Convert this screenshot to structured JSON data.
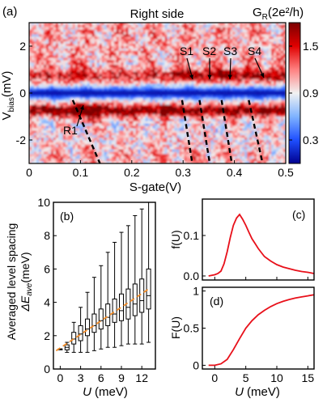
{
  "figure": {
    "panel_labels": [
      "(a)",
      "(b)",
      "(c)",
      "(d)"
    ]
  },
  "chart_data": [
    {
      "panel": "(a)",
      "type": "heatmap",
      "title": "Right side",
      "xlabel": "S-gate(V)",
      "ylabel": "V",
      "ylabel_sub": "bias",
      "ylabel_unit": "(mV)",
      "xlim": [
        0,
        0.5
      ],
      "ylim": [
        -3,
        3
      ],
      "xticks": [
        "0",
        "0.1",
        "0.2",
        "0.3",
        "0.4",
        "0.5"
      ],
      "yticks": [
        "2",
        "0",
        "-2"
      ],
      "colorbar": {
        "label": "G",
        "label_sub": "R",
        "label_unit": "(2e²/h)",
        "ticks": [
          "1.5",
          "0.9",
          "0.3"
        ],
        "range": [
          0,
          1.8
        ],
        "colors": [
          "#00008f",
          "#1f4fff",
          "#7fb3ff",
          "#f2f2f2",
          "#ff8080",
          "#e00000",
          "#7a0000"
        ]
      },
      "annotations": [
        "R1",
        "S1",
        "S2",
        "S3",
        "S4"
      ],
      "dashed_lines": [
        {
          "x": [
            0.085,
            0.138
          ],
          "y": [
            -0.3,
            -3.0
          ]
        },
        {
          "x": [
            0.298,
            0.318
          ],
          "y": [
            -0.3,
            -3.0
          ]
        },
        {
          "x": [
            0.332,
            0.352
          ],
          "y": [
            -0.3,
            -3.0
          ]
        },
        {
          "x": [
            0.375,
            0.395
          ],
          "y": [
            -0.3,
            -3.0
          ]
        },
        {
          "x": [
            0.428,
            0.455
          ],
          "y": [
            -0.3,
            -3.0
          ]
        }
      ]
    },
    {
      "panel": "(b)",
      "type": "box",
      "ylabel_line1": "Averaged level spacing",
      "ylabel_line2": "ΔE",
      "ylabel_line2_sub": "ave",
      "ylabel_line2_unit": "(meV)",
      "xlabel_var": "U",
      "xlabel_unit": "(meV)",
      "xlim": [
        -1,
        14
      ],
      "ylim": [
        0,
        10
      ],
      "xticks": [
        "0",
        "3",
        "6",
        "9",
        "12"
      ],
      "yticks": [
        "0",
        "2",
        "4",
        "6",
        "8",
        "10"
      ],
      "x": [
        0,
        1,
        2,
        3,
        4,
        5,
        6,
        7,
        8,
        9,
        10,
        11,
        12,
        13
      ],
      "q1": [
        1.2,
        1.15,
        1.5,
        1.7,
        2.0,
        2.2,
        2.4,
        2.6,
        2.8,
        2.9,
        3.0,
        3.2,
        3.4,
        3.6
      ],
      "median": [
        1.2,
        1.3,
        1.8,
        2.1,
        2.4,
        2.6,
        2.9,
        3.1,
        3.3,
        3.5,
        3.7,
        3.9,
        4.1,
        4.4
      ],
      "q3": [
        1.2,
        1.45,
        2.2,
        2.6,
        3.0,
        3.3,
        3.6,
        3.9,
        4.2,
        4.5,
        4.8,
        5.1,
        5.4,
        6.0
      ],
      "wlow": [
        1.2,
        1.0,
        1.0,
        1.0,
        1.0,
        1.1,
        1.2,
        1.3,
        1.3,
        1.4,
        1.5,
        1.5,
        1.5,
        1.6
      ],
      "whigh": [
        1.2,
        1.6,
        2.8,
        3.7,
        4.6,
        5.5,
        6.2,
        7.0,
        7.6,
        8.2,
        8.6,
        9.2,
        9.6,
        10.0
      ],
      "trend_x": [
        -0.6,
        13.2
      ],
      "trend_y": [
        1.1,
        4.85
      ],
      "trend_color": "#f28c28"
    },
    {
      "panel": "(c)",
      "type": "line",
      "ylabel": "f(U)",
      "xlim": [
        -2,
        16
      ],
      "ylim": [
        -0.01,
        0.19
      ],
      "yticks": [
        "0.0",
        "0.1"
      ],
      "x": [
        -1,
        0,
        0.5,
        1,
        1.5,
        2,
        2.5,
        3,
        3.5,
        4,
        4.5,
        5,
        5.5,
        6,
        6.5,
        7,
        7.5,
        8,
        9,
        10,
        11,
        12,
        13,
        14,
        15,
        16
      ],
      "y": [
        0.0,
        0.003,
        0.006,
        0.012,
        0.03,
        0.06,
        0.095,
        0.125,
        0.143,
        0.152,
        0.14,
        0.125,
        0.108,
        0.092,
        0.08,
        0.068,
        0.058,
        0.048,
        0.037,
        0.028,
        0.022,
        0.018,
        0.014,
        0.011,
        0.009,
        0.006
      ],
      "color": "#e8101a"
    },
    {
      "panel": "(d)",
      "type": "line",
      "ylabel": "F(U)",
      "xlabel_var": "U",
      "xlabel_unit": "(meV)",
      "xlim": [
        -2,
        16
      ],
      "ylim": [
        -0.05,
        1.05
      ],
      "xticks": [
        "0",
        "5",
        "10",
        "15"
      ],
      "yticks": [
        "0",
        "0.5",
        "1"
      ],
      "x": [
        -1,
        0,
        1,
        2,
        3,
        4,
        5,
        6,
        7,
        8,
        9,
        10,
        11,
        12,
        13,
        14,
        15,
        16
      ],
      "y": [
        0.0,
        0.0,
        0.02,
        0.08,
        0.21,
        0.36,
        0.5,
        0.6,
        0.68,
        0.74,
        0.79,
        0.83,
        0.86,
        0.885,
        0.905,
        0.92,
        0.935,
        0.95
      ],
      "color": "#e8101a"
    }
  ]
}
